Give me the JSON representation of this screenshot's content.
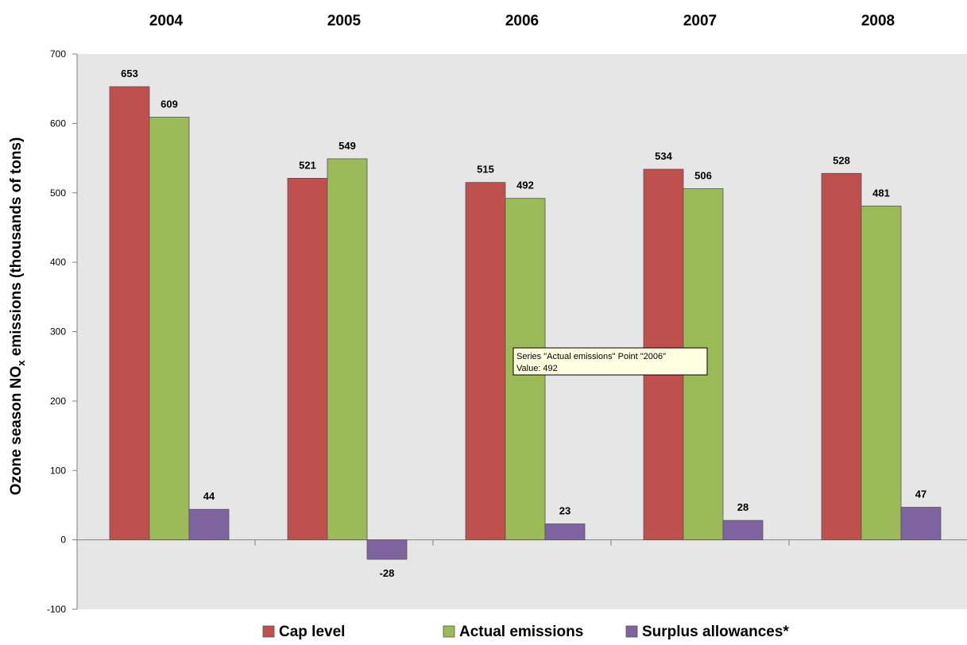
{
  "chart_data": {
    "type": "bar",
    "categories": [
      "2004",
      "2005",
      "2006",
      "2007",
      "2008"
    ],
    "series": [
      {
        "name": "Cap level",
        "color": "#C0504D",
        "values": [
          653,
          521,
          515,
          534,
          528
        ]
      },
      {
        "name": "Actual emissions",
        "color": "#9BBB59",
        "values": [
          609,
          549,
          492,
          506,
          481
        ]
      },
      {
        "name": "Surplus allowances*",
        "color": "#8064A2",
        "values": [
          44,
          -28,
          23,
          28,
          47
        ]
      }
    ],
    "ylabel_main": "Ozone season NO",
    "ylabel_sub": "x",
    "ylabel_rest": " emissions (thousands  of tons)",
    "ylim": [
      -100,
      700
    ],
    "yticks": [
      "-100",
      "0",
      "100",
      "200",
      "300",
      "400",
      "500",
      "600",
      "700"
    ],
    "category_labels_position": "top",
    "legend_position": "bottom",
    "grid": false,
    "plot_background": "#E6E6E6"
  },
  "tooltip": {
    "line1": "Series \"Actual emissions\" Point \"2006\"",
    "line2": "Value: 492"
  }
}
